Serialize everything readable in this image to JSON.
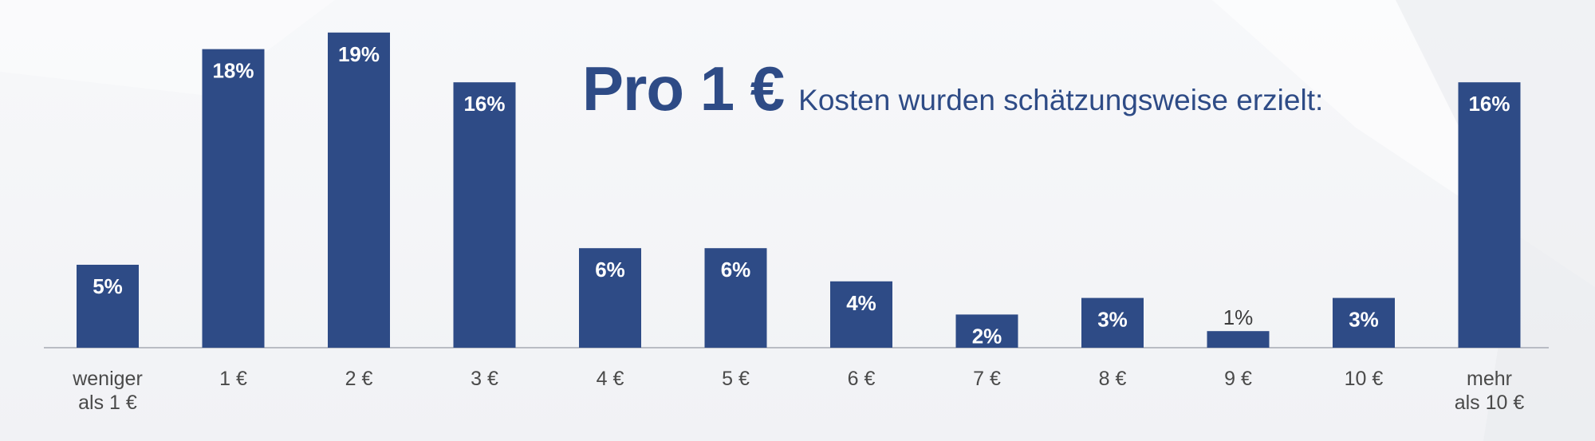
{
  "title": {
    "main": "Pro 1 €",
    "sub": "Kosten wurden schätzungsweise erzielt:"
  },
  "colors": {
    "bar": "#2e4b86",
    "title": "#2e4b86",
    "axis": "#b9bcc4",
    "background": "#f4f5f8"
  },
  "chart_data": {
    "type": "bar",
    "title": "Pro 1 € Kosten wurden schätzungsweise erzielt:",
    "categories": [
      [
        "weniger",
        "als 1 €"
      ],
      [
        "1 €"
      ],
      [
        "2 €"
      ],
      [
        "3 €"
      ],
      [
        "4 €"
      ],
      [
        "5 €"
      ],
      [
        "6 €"
      ],
      [
        "7 €"
      ],
      [
        "8 €"
      ],
      [
        "9 €"
      ],
      [
        "10 €"
      ],
      [
        "mehr",
        "als 10 €"
      ]
    ],
    "values": [
      5,
      18,
      19,
      16,
      6,
      6,
      4,
      2,
      3,
      1,
      3,
      16
    ],
    "value_labels": [
      "5%",
      "18%",
      "19%",
      "16%",
      "6%",
      "6%",
      "4%",
      "2%",
      "3%",
      "1%",
      "3%",
      "16%"
    ],
    "unit": "%",
    "xlabel": "",
    "ylabel": "",
    "grid": false,
    "legend": "none"
  }
}
